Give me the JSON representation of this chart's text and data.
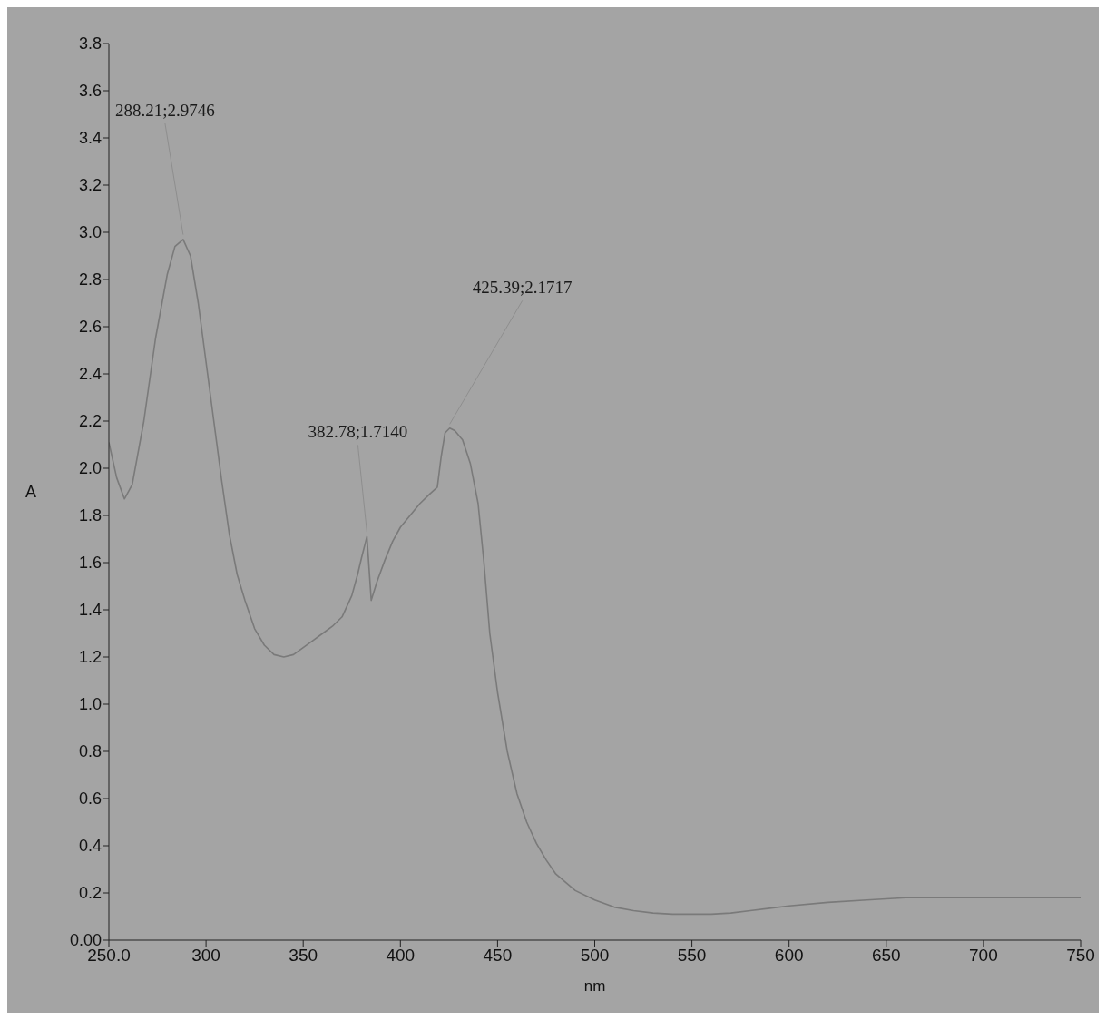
{
  "chart_data": {
    "type": "line",
    "xlabel": "nm",
    "ylabel": "A",
    "xlim": [
      250,
      750
    ],
    "ylim": [
      0,
      3.8
    ],
    "xticks": [
      {
        "value": 250,
        "label": "250.0"
      },
      300,
      350,
      400,
      450,
      500,
      550,
      600,
      650,
      700,
      750
    ],
    "yticks": [
      {
        "value": 0,
        "label": "0.00"
      },
      0.2,
      0.4,
      0.6,
      0.8,
      {
        "value": 1,
        "label": "1.0"
      },
      1.2,
      1.4,
      1.6,
      1.8,
      {
        "value": 2,
        "label": "2.0"
      },
      2.2,
      2.4,
      2.6,
      2.8,
      {
        "value": 3,
        "label": "3.0"
      },
      3.2,
      3.4,
      3.6,
      3.8
    ],
    "marker": "none",
    "line_style": "solid",
    "series": [
      {
        "color": "#7a7a7a",
        "x": [
          250,
          254,
          258,
          262,
          268,
          274,
          280,
          284,
          288.21,
          292,
          296,
          300,
          304,
          308,
          312,
          316,
          320,
          325,
          330,
          335,
          340,
          345,
          350,
          355,
          360,
          365,
          370,
          375,
          378,
          380,
          382.78,
          385,
          388,
          392,
          396,
          400,
          405,
          410,
          415,
          419,
          421,
          423,
          425.39,
          428,
          432,
          436,
          440,
          443,
          446,
          450,
          455,
          460,
          465,
          470,
          475,
          480,
          490,
          500,
          510,
          520,
          530,
          540,
          550,
          560,
          570,
          580,
          590,
          600,
          620,
          640,
          660,
          680,
          700,
          720,
          740,
          750
        ],
        "values": [
          2.11,
          1.96,
          1.87,
          1.93,
          2.2,
          2.55,
          2.82,
          2.94,
          2.97,
          2.9,
          2.7,
          2.45,
          2.2,
          1.95,
          1.72,
          1.55,
          1.44,
          1.32,
          1.25,
          1.21,
          1.2,
          1.21,
          1.24,
          1.27,
          1.3,
          1.33,
          1.37,
          1.46,
          1.55,
          1.62,
          1.71,
          1.44,
          1.52,
          1.61,
          1.69,
          1.75,
          1.8,
          1.85,
          1.89,
          1.92,
          2.05,
          2.15,
          2.17,
          2.16,
          2.12,
          2.02,
          1.85,
          1.6,
          1.3,
          1.05,
          0.8,
          0.62,
          0.5,
          0.41,
          0.34,
          0.28,
          0.21,
          0.17,
          0.14,
          0.125,
          0.115,
          0.11,
          0.11,
          0.11,
          0.115,
          0.125,
          0.135,
          0.145,
          0.16,
          0.17,
          0.18,
          0.18,
          0.18,
          0.18,
          0.18,
          0.18
        ]
      }
    ],
    "annotations": [
      {
        "text": "288.21;2.9746",
        "x": 288.21,
        "y": 2.9746
      },
      {
        "text": "382.78;1.7140",
        "x": 382.78,
        "y": 1.714
      },
      {
        "text": "425.39;2.1717",
        "x": 425.39,
        "y": 2.1717
      }
    ]
  }
}
